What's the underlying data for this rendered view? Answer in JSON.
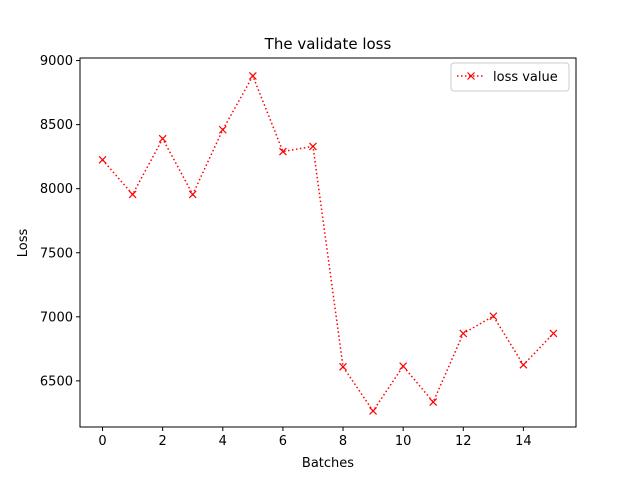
{
  "chart_data": {
    "type": "line",
    "title": "The validate loss",
    "xlabel": "Batches",
    "ylabel": "Loss",
    "xlim": [
      -0.75,
      15.75
    ],
    "ylim": [
      6140,
      9020
    ],
    "x_ticks": [
      0,
      2,
      4,
      6,
      8,
      10,
      12,
      14
    ],
    "y_ticks": [
      6500,
      7000,
      7500,
      8000,
      8500,
      9000
    ],
    "grid": false,
    "legend_position": "top-right",
    "series": [
      {
        "name": "loss value",
        "color": "#ff0000",
        "line_style": "dotted",
        "marker": "x",
        "x": [
          0,
          1,
          2,
          3,
          4,
          5,
          6,
          7,
          8,
          9,
          10,
          11,
          12,
          13,
          14,
          15
        ],
        "values": [
          8225,
          7955,
          8390,
          7955,
          8460,
          8880,
          8290,
          8330,
          6610,
          6265,
          6615,
          6335,
          6870,
          7005,
          6625,
          6870
        ]
      }
    ]
  }
}
